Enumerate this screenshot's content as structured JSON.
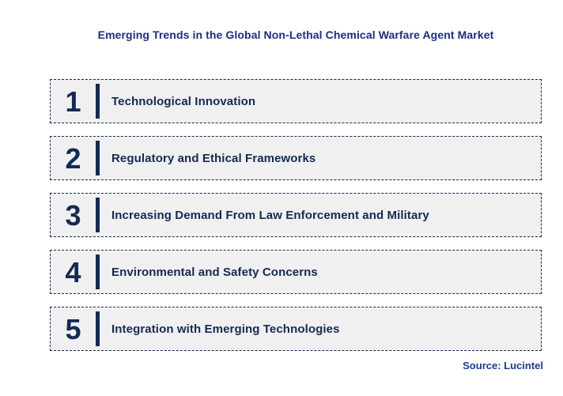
{
  "title": "Emerging Trends in the Global Non-Lethal Chemical Warfare Agent Market",
  "trends": [
    {
      "number": "1",
      "label": "Technological Innovation"
    },
    {
      "number": "2",
      "label": "Regulatory and Ethical Frameworks"
    },
    {
      "number": "3",
      "label": "Increasing Demand From Law Enforcement and Military"
    },
    {
      "number": "4",
      "label": "Environmental and Safety Concerns"
    },
    {
      "number": "5",
      "label": "Integration with Emerging Technologies"
    }
  ],
  "source": "Source: Lucintel",
  "colors": {
    "navy": "#132a54",
    "title_blue": "#1a2f80",
    "source_blue": "#1b3a96",
    "row_bg": "#f0f0f0",
    "page_bg": "#ffffff"
  }
}
